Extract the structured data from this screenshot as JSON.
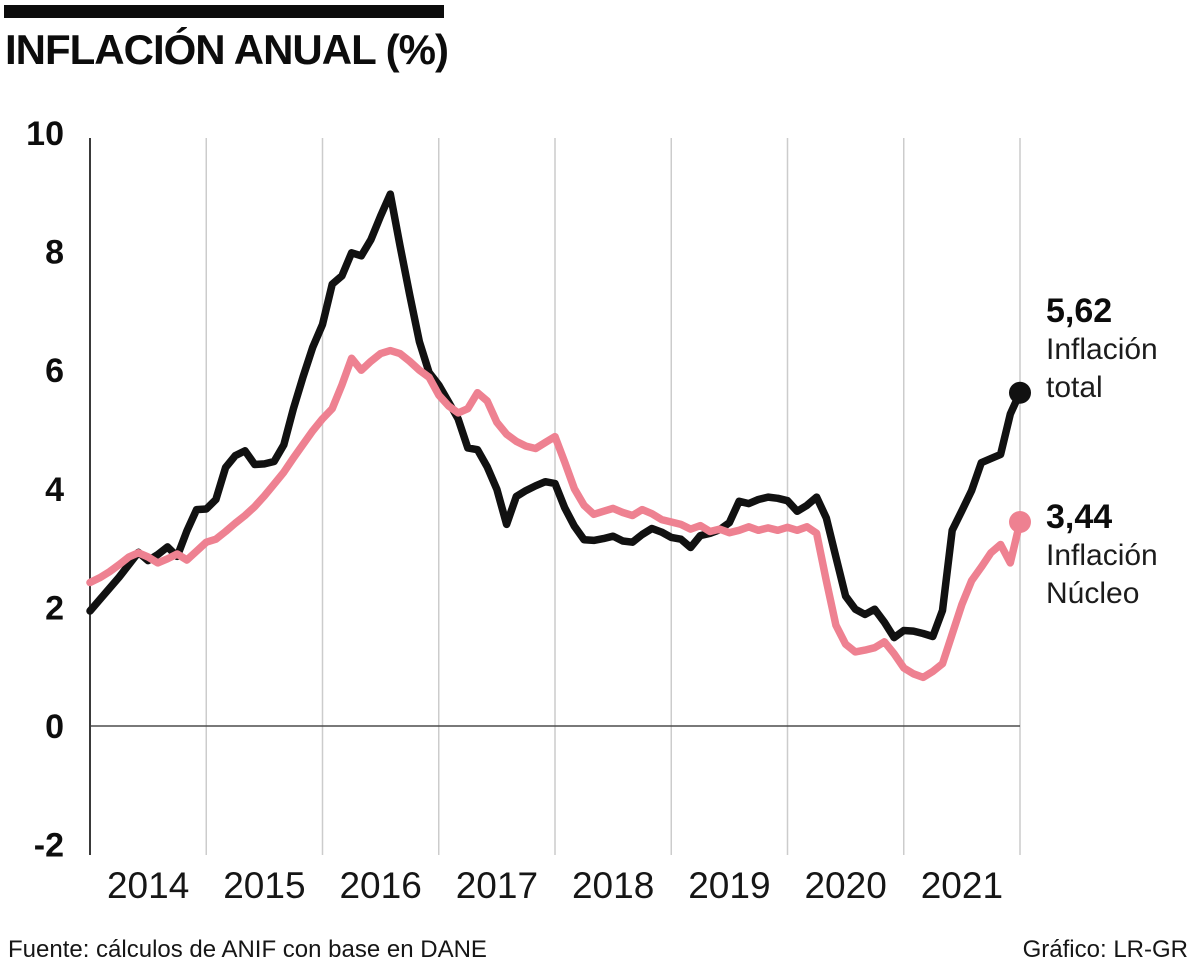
{
  "header": {
    "title": "INFLACIÓN ANUAL (%)"
  },
  "annotations": {
    "total": {
      "value": "5,62",
      "label_line1": "Inflación",
      "label_line2": "total"
    },
    "nucleo": {
      "value": "3,44",
      "label_line1": "Inflación",
      "label_line2": "Núcleo"
    }
  },
  "footer": {
    "source": "Fuente: cálculos de ANIF con base en DANE",
    "credit": "Gráfico: LR-GR"
  },
  "colors": {
    "total": "#111111",
    "nucleo": "#ee8191",
    "grid": "#cccccc",
    "zero_line": "#4d4d4d",
    "axis": "#3a3a3a",
    "accent": "#0c0c0c"
  },
  "chart_data": {
    "type": "line",
    "title": "INFLACIÓN ANUAL (%)",
    "x_monthly_start": "2013-12",
    "x_monthly_end": "2021-12",
    "x_tick_labels": [
      "2014",
      "2015",
      "2016",
      "2017",
      "2018",
      "2019",
      "2020",
      "2021"
    ],
    "y_ticks": [
      10,
      8,
      6,
      4,
      2,
      0,
      -2
    ],
    "ylim": [
      -2,
      10
    ],
    "grid": "vertical-yearly",
    "legend_position": "right-end-labels",
    "series": [
      {
        "name": "Inflación total",
        "color": "#111111",
        "end_value": 5.62,
        "end_value_label": "5,62",
        "values": [
          1.94,
          2.13,
          2.32,
          2.51,
          2.72,
          2.93,
          2.79,
          2.89,
          3.02,
          2.86,
          3.29,
          3.65,
          3.66,
          3.82,
          4.36,
          4.56,
          4.64,
          4.41,
          4.42,
          4.46,
          4.74,
          5.35,
          5.89,
          6.39,
          6.77,
          7.45,
          7.59,
          7.98,
          7.93,
          8.2,
          8.6,
          8.97,
          8.1,
          7.27,
          6.48,
          5.96,
          5.75,
          5.47,
          5.18,
          4.69,
          4.66,
          4.37,
          3.99,
          3.4,
          3.87,
          3.97,
          4.05,
          4.12,
          4.09,
          3.68,
          3.37,
          3.14,
          3.13,
          3.16,
          3.2,
          3.12,
          3.1,
          3.23,
          3.33,
          3.27,
          3.18,
          3.15,
          3.01,
          3.21,
          3.25,
          3.31,
          3.43,
          3.79,
          3.75,
          3.82,
          3.86,
          3.84,
          3.8,
          3.62,
          3.72,
          3.86,
          3.51,
          2.85,
          2.19,
          1.97,
          1.88,
          1.97,
          1.75,
          1.49,
          1.61,
          1.6,
          1.56,
          1.51,
          1.95,
          3.3,
          3.63,
          3.97,
          4.44,
          4.51,
          4.58,
          5.26,
          5.62
        ]
      },
      {
        "name": "Inflación Núcleo",
        "color": "#ee8191",
        "end_value": 3.44,
        "end_value_label": "3,44",
        "values": [
          2.42,
          2.5,
          2.6,
          2.72,
          2.85,
          2.92,
          2.85,
          2.75,
          2.82,
          2.9,
          2.8,
          2.95,
          3.1,
          3.15,
          3.28,
          3.42,
          3.55,
          3.7,
          3.88,
          4.08,
          4.28,
          4.52,
          4.75,
          4.98,
          5.18,
          5.35,
          5.75,
          6.2,
          6.0,
          6.15,
          6.28,
          6.33,
          6.28,
          6.15,
          6.0,
          5.88,
          5.58,
          5.4,
          5.28,
          5.35,
          5.62,
          5.48,
          5.12,
          4.92,
          4.8,
          4.72,
          4.68,
          4.78,
          4.88,
          4.45,
          4.0,
          3.72,
          3.57,
          3.62,
          3.67,
          3.6,
          3.55,
          3.65,
          3.58,
          3.48,
          3.44,
          3.4,
          3.32,
          3.38,
          3.28,
          3.32,
          3.26,
          3.3,
          3.36,
          3.3,
          3.34,
          3.3,
          3.35,
          3.3,
          3.36,
          3.25,
          2.45,
          1.7,
          1.38,
          1.25,
          1.28,
          1.32,
          1.42,
          1.22,
          0.98,
          0.88,
          0.82,
          0.92,
          1.05,
          1.55,
          2.05,
          2.45,
          2.68,
          2.92,
          3.06,
          2.75,
          3.44
        ]
      }
    ]
  }
}
